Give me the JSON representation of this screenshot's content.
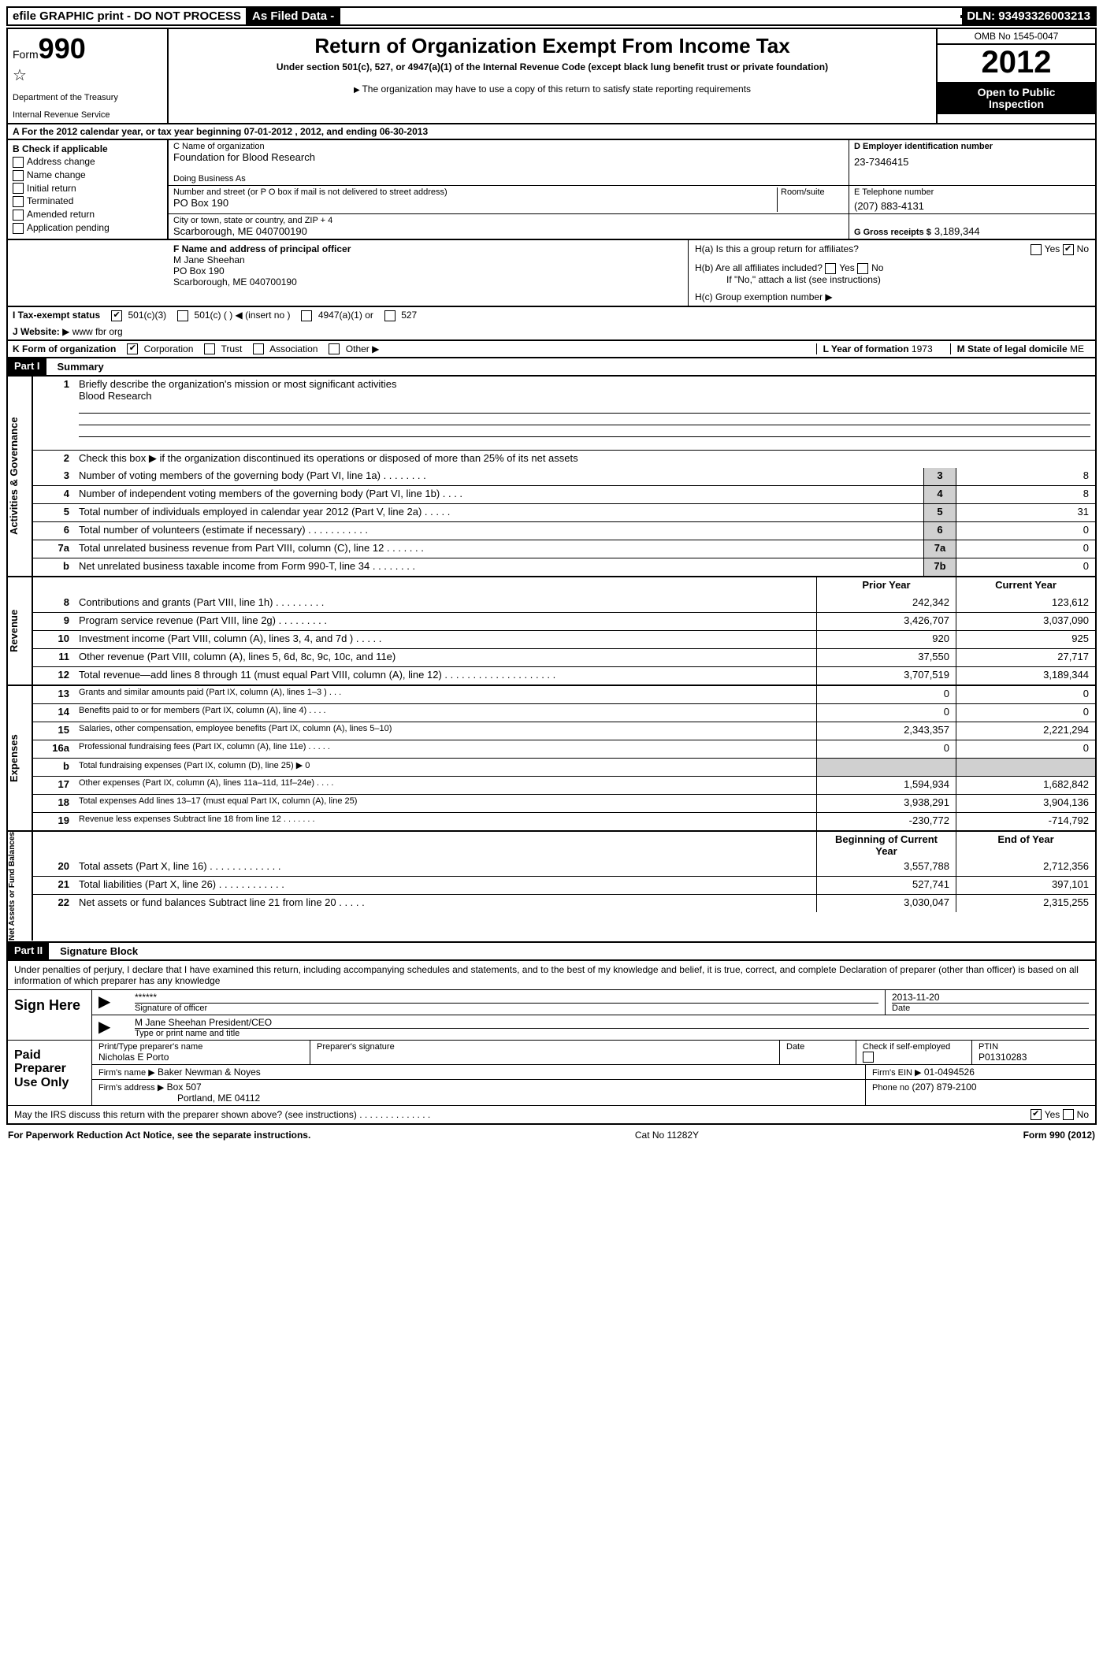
{
  "topbar": {
    "efile": "efile GRAPHIC print - DO NOT PROCESS",
    "asfiled": "As Filed Data -",
    "dln_label": "DLN:",
    "dln": "93493326003213"
  },
  "header": {
    "form_prefix": "Form",
    "form_no": "990",
    "dept1": "Department of the Treasury",
    "dept2": "Internal Revenue Service",
    "title": "Return of Organization Exempt From Income Tax",
    "subtitle": "Under section 501(c), 527, or 4947(a)(1) of the Internal Revenue Code (except black lung benefit trust or private foundation)",
    "copynote": "The organization may have to use a copy of this return to satisfy state reporting requirements",
    "omb": "OMB No 1545-0047",
    "year": "2012",
    "open1": "Open to Public",
    "open2": "Inspection"
  },
  "rowA": "A  For the 2012 calendar year, or tax year beginning 07-01-2012    , 2012, and ending 06-30-2013",
  "secB": {
    "title": "B  Check if applicable",
    "items": [
      "Address change",
      "Name change",
      "Initial return",
      "Terminated",
      "Amended return",
      "Application pending"
    ]
  },
  "secC": {
    "name_lbl": "C Name of organization",
    "name": "Foundation for Blood Research",
    "dba_lbl": "Doing Business As",
    "dba": "",
    "street_lbl": "Number and street (or P O  box if mail is not delivered to street address)",
    "room_lbl": "Room/suite",
    "street": "PO Box 190",
    "city_lbl": "City or town, state or country, and ZIP + 4",
    "city": "Scarborough, ME  040700190"
  },
  "secD": {
    "ein_lbl": "D Employer identification number",
    "ein": "23-7346415",
    "tel_lbl": "E Telephone number",
    "tel": "(207) 883-4131",
    "gross_lbl": "G Gross receipts $",
    "gross": "3,189,344"
  },
  "secF": {
    "lbl": "F    Name and address of principal officer",
    "l1": "M Jane Sheehan",
    "l2": "PO Box 190",
    "l3": "Scarborough, ME  040700190"
  },
  "secH": {
    "ha": "H(a)  Is this a group return for affiliates?",
    "ha_yes": "Yes",
    "ha_no": "No",
    "hb": "H(b)  Are all affiliates included?",
    "hb_note": "If \"No,\" attach a list  (see instructions)",
    "hc": "H(c)   Group exemption number"
  },
  "lineI": {
    "label": "I   Tax-exempt status",
    "opts": [
      "501(c)(3)",
      "501(c) (  )",
      "(insert no )",
      "4947(a)(1) or",
      "527"
    ]
  },
  "lineJ": {
    "label": "J   Website:",
    "val": "www fbr org"
  },
  "lineK": {
    "label": "K Form of organization",
    "opts": [
      "Corporation",
      "Trust",
      "Association",
      "Other"
    ],
    "yof_lbl": "L Year of formation",
    "yof": "1973",
    "state_lbl": "M State of legal domicile",
    "state": "ME"
  },
  "part1": {
    "hdr": "Part I",
    "title": "Summary"
  },
  "sideLabels": {
    "ag": "Activities & Governance",
    "rev": "Revenue",
    "exp": "Expenses",
    "na": "Net Assets or\nFund Balances"
  },
  "govRows": {
    "r1_lbl": "Briefly describe the organization's mission or most significant activities",
    "r1_val": "Blood Research",
    "r2": "Check this box ▶     if the organization discontinued its operations or disposed of more than 25% of its net assets",
    "r3": {
      "n": "3",
      "d": "Number of voting members of the governing body (Part VI, line 1a)  .   .   .   .   .   .   .   .",
      "g": "3",
      "v": "8"
    },
    "r4": {
      "n": "4",
      "d": "Number of independent voting members of the governing body (Part VI, line 1b)   .   .   .   .",
      "g": "4",
      "v": "8"
    },
    "r5": {
      "n": "5",
      "d": "Total number of individuals employed in calendar year 2012 (Part V, line 2a)   .   .   .   .   .",
      "g": "5",
      "v": "31"
    },
    "r6": {
      "n": "6",
      "d": "Total number of volunteers (estimate if necessary)   .   .   .   .   .   .   .   .   .   .   .",
      "g": "6",
      "v": "0"
    },
    "r7a": {
      "n": "7a",
      "d": "Total unrelated business revenue from Part VIII, column (C), line 12   .   .   .   .   .   .   .",
      "g": "7a",
      "v": "0"
    },
    "r7b": {
      "n": "b",
      "d": "Net unrelated business taxable income from Form 990-T, line 34   .   .   .   .   .   .   .   .",
      "g": "7b",
      "v": "0"
    }
  },
  "colHdrs": {
    "prior": "Prior Year",
    "curr": "Current Year",
    "boy": "Beginning of Current Year",
    "eoy": "End of Year"
  },
  "revRows": [
    {
      "n": "8",
      "d": "Contributions and grants (Part VIII, line 1h)   .   .   .   .   .   .   .   .   .",
      "p": "242,342",
      "c": "123,612"
    },
    {
      "n": "9",
      "d": "Program service revenue (Part VIII, line 2g)   .   .   .   .   .   .   .   .   .",
      "p": "3,426,707",
      "c": "3,037,090"
    },
    {
      "n": "10",
      "d": "Investment income (Part VIII, column (A), lines 3, 4, and 7d )   .   .   .   .   .",
      "p": "920",
      "c": "925"
    },
    {
      "n": "11",
      "d": "Other revenue (Part VIII, column (A), lines 5, 6d, 8c, 9c, 10c, and 11e)",
      "p": "37,550",
      "c": "27,717"
    },
    {
      "n": "12",
      "d": "Total revenue—add lines 8 through 11 (must equal Part VIII, column (A), line 12) .   .   .   .   .   .   .   .   .   .   .   .   .   .   .   .   .   .   .   .",
      "p": "3,707,519",
      "c": "3,189,344"
    }
  ],
  "expRows": [
    {
      "n": "13",
      "d": "Grants and similar amounts paid (Part IX, column (A), lines 1–3 )   .   .   .",
      "p": "0",
      "c": "0"
    },
    {
      "n": "14",
      "d": "Benefits paid to or for members (Part IX, column (A), line 4)   .   .   .   .",
      "p": "0",
      "c": "0"
    },
    {
      "n": "15",
      "d": "Salaries, other compensation, employee benefits (Part IX, column (A), lines 5–10)",
      "p": "2,343,357",
      "c": "2,221,294"
    },
    {
      "n": "16a",
      "d": "Professional fundraising fees (Part IX, column (A), line 11e)   .   .   .   .   .",
      "p": "0",
      "c": "0"
    },
    {
      "n": "b",
      "d": "Total fundraising expenses (Part IX, column (D), line 25) ▶ 0",
      "p": "",
      "c": "",
      "shaded": true
    },
    {
      "n": "17",
      "d": "Other expenses (Part IX, column (A), lines 11a–11d, 11f–24e)   .   .   .   .",
      "p": "1,594,934",
      "c": "1,682,842"
    },
    {
      "n": "18",
      "d": "Total expenses  Add lines 13–17 (must equal Part IX, column (A), line 25)",
      "p": "3,938,291",
      "c": "3,904,136"
    },
    {
      "n": "19",
      "d": "Revenue less expenses  Subtract line 18 from line 12   .   .   .   .   .   .   .",
      "p": "-230,772",
      "c": "-714,792"
    }
  ],
  "naRows": [
    {
      "n": "20",
      "d": "Total assets (Part X, line 16)   .   .   .   .   .   .   .   .   .   .   .   .   .",
      "p": "3,557,788",
      "c": "2,712,356"
    },
    {
      "n": "21",
      "d": "Total liabilities (Part X, line 26)   .   .   .   .   .   .   .   .   .   .   .   .",
      "p": "527,741",
      "c": "397,101"
    },
    {
      "n": "22",
      "d": "Net assets or fund balances  Subtract line 21 from line 20   .   .   .   .   .",
      "p": "3,030,047",
      "c": "2,315,255"
    }
  ],
  "part2": {
    "hdr": "Part II",
    "title": "Signature Block"
  },
  "sig": {
    "perjury": "Under penalties of perjury, I declare that I have examined this return, including accompanying schedules and statements, and to the best of my knowledge and belief, it is true, correct, and complete  Declaration of preparer (other than officer) is based on all information of which preparer has any knowledge",
    "sign_here": "Sign Here",
    "stars": "******",
    "sig_off": "Signature of officer",
    "date_lbl": "Date",
    "date_val": "2013-11-20",
    "officer": "M Jane Sheehan President/CEO",
    "type_lbl": "Type or print name and title",
    "paid": "Paid Preparer Use Only",
    "prep_name_lbl": "Print/Type preparer's name",
    "prep_name": "Nicholas E Porto",
    "prep_sig_lbl": "Preparer's signature",
    "prep_date_lbl": "Date",
    "selfemp": "Check        if self-employed",
    "ptin_lbl": "PTIN",
    "ptin": "P01310283",
    "firm_name_lbl": "Firm's name    ▶",
    "firm_name": "Baker Newman & Noyes",
    "firm_ein_lbl": "Firm's EIN ▶",
    "firm_ein": "01-0494526",
    "firm_addr_lbl": "Firm's address ▶",
    "firm_addr1": "Box 507",
    "firm_addr2": "Portland, ME  04112",
    "phone_lbl": "Phone no",
    "phone": "(207) 879-2100",
    "discuss": "May the IRS discuss this return with the preparer shown above? (see instructions)   .   .   .   .   .   .   .   .   .   .   .   .   .   .",
    "yes": "Yes",
    "no": "No"
  },
  "footer": {
    "left": "For Paperwork Reduction Act Notice, see the separate instructions.",
    "mid": "Cat No 11282Y",
    "right": "Form 990 (2012)"
  }
}
